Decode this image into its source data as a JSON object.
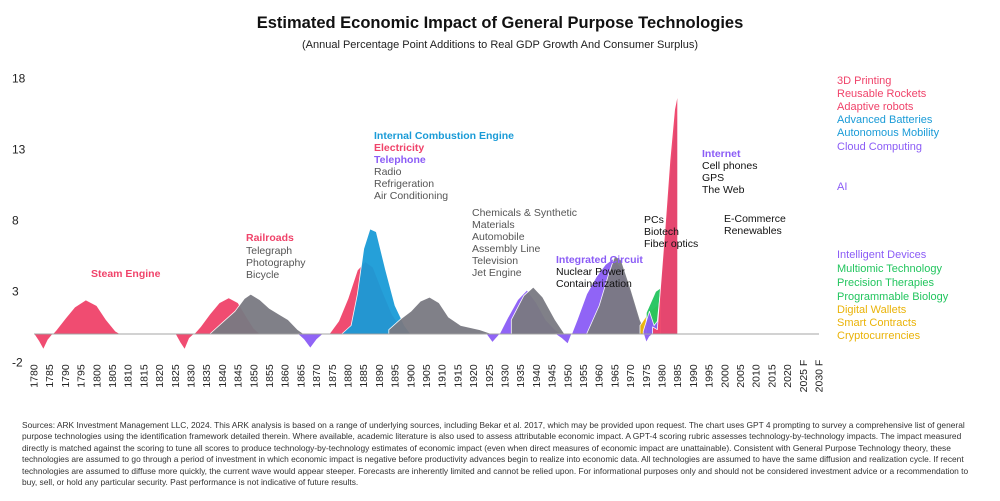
{
  "chart_data": {
    "type": "area",
    "title": "Estimated Economic Impact of General Purpose Technologies",
    "subtitle": "(Annual Percentage Point Additions to Real GDP Growth And Consumer Surplus)",
    "xlabel": "",
    "ylabel": "",
    "y_ticks": [
      "18",
      "13",
      "8",
      "3",
      "-2"
    ],
    "y_tick_values": [
      18,
      13,
      8,
      3,
      -2
    ],
    "ylim": [
      -2,
      18
    ],
    "x_tick_labels": [
      "1780",
      "1785",
      "1790",
      "1795",
      "1800",
      "1805",
      "1810",
      "1815",
      "1820",
      "1825",
      "1830",
      "1835",
      "1840",
      "1845",
      "1850",
      "1855",
      "1860",
      "1865",
      "1870",
      "1875",
      "1880",
      "1885",
      "1890",
      "1895",
      "1900",
      "1905",
      "1910",
      "1915",
      "1920",
      "1925",
      "1930",
      "1935",
      "1940",
      "1945",
      "1950",
      "1955",
      "1960",
      "1965",
      "1970",
      "1975",
      "1980",
      "1985",
      "1990",
      "1995",
      "2000",
      "2005",
      "2010",
      "2015",
      "2020",
      "2025 F",
      "2030 F"
    ],
    "annotations": [
      {
        "lines": [
          "Steam Engine"
        ],
        "style": "bold",
        "color": "#f0436a"
      },
      {
        "lines": [
          "Railroads"
        ],
        "style": "bold",
        "color": "#f0436a"
      },
      {
        "lines": [
          "Telegraph",
          "Photography",
          "Bicycle"
        ],
        "style": "regular",
        "color": "#555555"
      },
      {
        "lines": [
          "Internal Combustion Engine"
        ],
        "style": "bold",
        "color": "#1a9bd7"
      },
      {
        "lines": [
          "Electricity"
        ],
        "style": "bold",
        "color": "#f0436a"
      },
      {
        "lines": [
          "Telephone"
        ],
        "style": "bold",
        "color": "#8b5cf6"
      },
      {
        "lines": [
          "Radio",
          "Refrigeration",
          "Air Conditioning"
        ],
        "style": "regular",
        "color": "#555555"
      },
      {
        "lines": [
          "Chemicals & Synthetic",
          "Materials",
          "Automobile",
          "Assembly Line",
          "Television",
          "Jet Engine"
        ],
        "style": "regular",
        "color": "#555555"
      },
      {
        "lines": [
          "Integrated Circuit"
        ],
        "style": "bold",
        "color": "#8b5cf6"
      },
      {
        "lines": [
          "Nuclear Power",
          "Containerization"
        ],
        "style": "regular",
        "color": "#111111"
      },
      {
        "lines": [
          "PCs",
          "Biotech",
          "Fiber optics"
        ],
        "style": "regular",
        "color": "#111111"
      },
      {
        "lines": [
          "Internet"
        ],
        "style": "bold",
        "color": "#8b5cf6"
      },
      {
        "lines": [
          "Cell phones",
          "GPS",
          "The Web"
        ],
        "style": "regular",
        "color": "#111111"
      },
      {
        "lines": [
          "E-Commerce",
          "Renewables"
        ],
        "style": "regular",
        "color": "#111111"
      }
    ],
    "legend": [
      {
        "name": "3D Printing",
        "color": "#f0436a"
      },
      {
        "name": "Reusable Rockets",
        "color": "#f0436a"
      },
      {
        "name": "Adaptive robots",
        "color": "#f0436a"
      },
      {
        "name": "Advanced Batteries",
        "color": "#1a9bd7"
      },
      {
        "name": "Autonomous Mobility",
        "color": "#1a9bd7"
      },
      {
        "name": "Cloud Computing",
        "color": "#8b5cf6"
      },
      {
        "name": "AI",
        "color": "#8b5cf6"
      },
      {
        "name": "Intelligent Devices",
        "color": "#8b5cf6"
      },
      {
        "name": "Multiomic Technology",
        "color": "#22c55e"
      },
      {
        "name": "Precision Therapies",
        "color": "#22c55e"
      },
      {
        "name": "Programmable Biology",
        "color": "#22c55e"
      },
      {
        "name": "Digital Wallets",
        "color": "#eab308"
      },
      {
        "name": "Smart Contracts",
        "color": "#eab308"
      },
      {
        "name": "Cryptocurrencies",
        "color": "#eab308"
      }
    ],
    "series": [
      {
        "color": "#f0436a",
        "points": [
          [
            1780,
            0
          ],
          [
            1781.5,
            -0.5
          ],
          [
            1783,
            -1.1
          ],
          [
            1784.5,
            -0.4
          ],
          [
            1786,
            0
          ],
          [
            1787,
            0.25
          ],
          [
            1790,
            1.1
          ],
          [
            1793,
            1.9
          ],
          [
            1796.5,
            2.4
          ],
          [
            1800,
            2.0
          ],
          [
            1803,
            1.0
          ],
          [
            1806,
            0.2
          ],
          [
            1807.5,
            0
          ],
          [
            1823,
            0
          ],
          [
            1825,
            0
          ],
          [
            1826.5,
            -0.6
          ],
          [
            1828,
            -1.1
          ],
          [
            1829.5,
            -0.3
          ],
          [
            1831,
            0
          ],
          [
            1833,
            0.5
          ],
          [
            1836,
            1.4
          ],
          [
            1839,
            2.2
          ],
          [
            1842,
            2.55
          ],
          [
            1845,
            2.2
          ],
          [
            1848,
            1.1
          ],
          [
            1850,
            0.4
          ],
          [
            1852,
            0
          ]
        ]
      },
      {
        "color": "#7a7a82",
        "points": [
          [
            1836,
            0
          ],
          [
            1840,
            0.8
          ],
          [
            1844,
            1.6
          ],
          [
            1847,
            2.5
          ],
          [
            1849,
            2.8
          ],
          [
            1852,
            2.4
          ],
          [
            1855,
            1.8
          ],
          [
            1858,
            1.4
          ],
          [
            1861,
            1.0
          ],
          [
            1864,
            0.3
          ],
          [
            1866,
            0
          ]
        ]
      },
      {
        "color": "#8b5cf6",
        "points": [
          [
            1864,
            0
          ],
          [
            1866,
            -0.4
          ],
          [
            1868,
            -1.0
          ],
          [
            1870,
            -0.4
          ],
          [
            1872,
            0
          ]
        ]
      },
      {
        "color": "#f0436a",
        "points": [
          [
            1874,
            0
          ],
          [
            1877,
            0.9
          ],
          [
            1880,
            2.5
          ],
          [
            1883,
            4.5
          ],
          [
            1885.5,
            5.1
          ],
          [
            1888,
            4.7
          ],
          [
            1891,
            3.0
          ],
          [
            1894,
            1.4
          ],
          [
            1897,
            0.4
          ],
          [
            1899,
            0
          ]
        ]
      },
      {
        "color": "#1a9bd7",
        "points": [
          [
            1878,
            0
          ],
          [
            1881,
            0.6
          ],
          [
            1883,
            2.8
          ],
          [
            1885,
            6.0
          ],
          [
            1887,
            7.4
          ],
          [
            1889,
            7.2
          ],
          [
            1892,
            4.5
          ],
          [
            1895,
            2.0
          ],
          [
            1898,
            0.6
          ],
          [
            1900,
            0
          ]
        ]
      },
      {
        "color": "#7a7a82",
        "points": [
          [
            1893,
            0.3
          ],
          [
            1897,
            1.1
          ],
          [
            1900,
            1.6
          ],
          [
            1903,
            2.3
          ],
          [
            1906,
            2.6
          ],
          [
            1909,
            2.2
          ],
          [
            1912,
            1.2
          ],
          [
            1916,
            0.6
          ],
          [
            1922,
            0.3
          ],
          [
            1926,
            0
          ]
        ]
      },
      {
        "color": "#8b5cf6",
        "points": [
          [
            1924,
            0
          ],
          [
            1926,
            -0.6
          ],
          [
            1928,
            -0.1
          ],
          [
            1931,
            1.2
          ],
          [
            1934,
            2.4
          ],
          [
            1937,
            3.1
          ],
          [
            1940,
            2.2
          ],
          [
            1943,
            1.0
          ],
          [
            1946,
            0.3
          ],
          [
            1948,
            0
          ]
        ]
      },
      {
        "color": "#7a7a82",
        "points": [
          [
            1932,
            1.0
          ],
          [
            1936,
            2.7
          ],
          [
            1939,
            3.3
          ],
          [
            1942,
            2.6
          ],
          [
            1946,
            1.0
          ],
          [
            1949,
            0
          ]
        ]
      },
      {
        "color": "#8b5cf6",
        "points": [
          [
            1946,
            0
          ],
          [
            1948,
            -0.3
          ],
          [
            1950,
            -0.7
          ],
          [
            1953,
            1.0
          ],
          [
            1956,
            2.8
          ],
          [
            1959,
            4.0
          ],
          [
            1962,
            4.9
          ],
          [
            1964.5,
            5.3
          ],
          [
            1967,
            4.7
          ],
          [
            1970,
            3.0
          ],
          [
            1973,
            0.8
          ],
          [
            1975,
            -0.6
          ],
          [
            1976,
            -0.2
          ],
          [
            1977,
            0
          ]
        ]
      },
      {
        "color": "#7a7a82",
        "points": [
          [
            1956,
            0
          ],
          [
            1960,
            2.0
          ],
          [
            1963,
            4.2
          ],
          [
            1965,
            5.5
          ],
          [
            1967,
            5.2
          ],
          [
            1970,
            3.2
          ],
          [
            1973,
            1.0
          ],
          [
            1975,
            0
          ]
        ]
      },
      {
        "color": "#eab308",
        "points": [
          [
            1973,
            0.6
          ],
          [
            1976,
            1.6
          ],
          [
            1979,
            2.1
          ],
          [
            1981,
            1.3
          ],
          [
            1982,
            0.6
          ],
          [
            1983,
            0.9
          ],
          [
            1985,
            2.2
          ]
        ]
      },
      {
        "color": "#22c55e",
        "points": [
          [
            1975,
            1.5
          ],
          [
            1978,
            3.0
          ],
          [
            1980,
            3.3
          ],
          [
            1982,
            2.8
          ],
          [
            1983,
            3.4
          ],
          [
            1985,
            3.8
          ]
        ]
      },
      {
        "color": "#8b5cf6",
        "points": [
          [
            1974,
            0.2
          ],
          [
            1976,
            1.6
          ],
          [
            1977.5,
            0.6
          ],
          [
            1978.5,
            0.9
          ],
          [
            1979.5,
            3.0
          ],
          [
            1981,
            6.5
          ],
          [
            1982.5,
            10.0
          ],
          [
            1984,
            13.0
          ],
          [
            1985,
            14.0
          ]
        ]
      },
      {
        "color": "#1a9bd7",
        "points": [
          [
            1979.5,
            3.0
          ],
          [
            1981,
            7.0
          ],
          [
            1982.5,
            11.2
          ],
          [
            1984,
            14.6
          ],
          [
            1985,
            15.7
          ]
        ]
      },
      {
        "color": "#f0436a",
        "points": [
          [
            1977,
            0.5
          ],
          [
            1978.5,
            0.3
          ],
          [
            1979.5,
            3.2
          ],
          [
            1981,
            7.5
          ],
          [
            1982.5,
            12.2
          ],
          [
            1984,
            15.8
          ],
          [
            1985,
            16.9
          ]
        ]
      }
    ]
  },
  "sources": "Sources: ARK Investment Management LLC, 2024. This ARK analysis is based on a range of underlying sources, including Bekar et al. 2017, which may be provided upon request. The chart uses GPT 4 prompting to survey a comprehensive list of general purpose technologies using the identification framework detailed therein. Where available, academic literature is also used to assess attributable economic impact. A GPT-4 scoring rubric assesses technology-by-technology impacts. The impact measured directly is matched against the scoring to tune all scores to produce technology-by-technology estimates of economic impact (even when direct measures of economic impact are unattainable). Consistent with General Purpose Technology theory, these technologies are assumed to go through a period of investment in which economic impact is negative before productivity advances begin to realize into economic data. All technologies are assumed to have the same diffusion and realization cycle. If recent technologies are assumed to diffuse more quickly, the current wave would appear steeper. Forecasts are inherently limited and cannot be relied upon. For informational purposes only and should not be considered investment advice or a recommendation to buy, sell, or hold any particular security. Past performance is not indicative of future results."
}
